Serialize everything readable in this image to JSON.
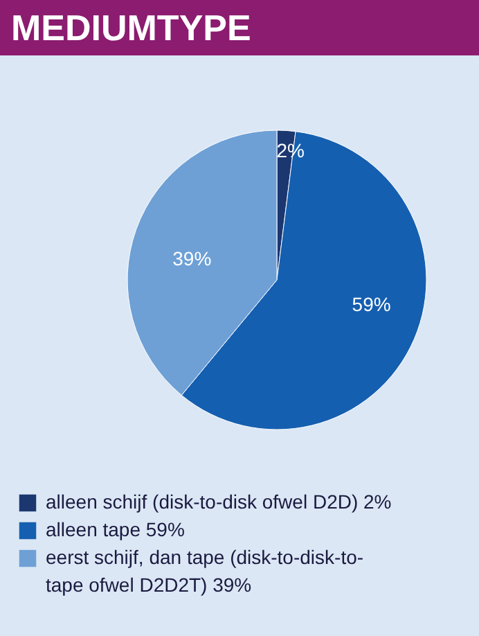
{
  "chart_data": {
    "type": "pie",
    "title": "MEDIUMTYPE",
    "categories": [
      "alleen schijf (disk-to-disk ofwel D2D) 2%",
      "alleen tape 59%",
      "eerst schijf, dan tape (disk-to-disk-to-tape ofwel D2D2T) 39%"
    ],
    "values": [
      2,
      59,
      39
    ],
    "value_labels": [
      "2%",
      "59%",
      "39%"
    ],
    "colors": [
      "#1c3770",
      "#155fb0",
      "#6ea0d6"
    ],
    "legend": "bottom"
  }
}
